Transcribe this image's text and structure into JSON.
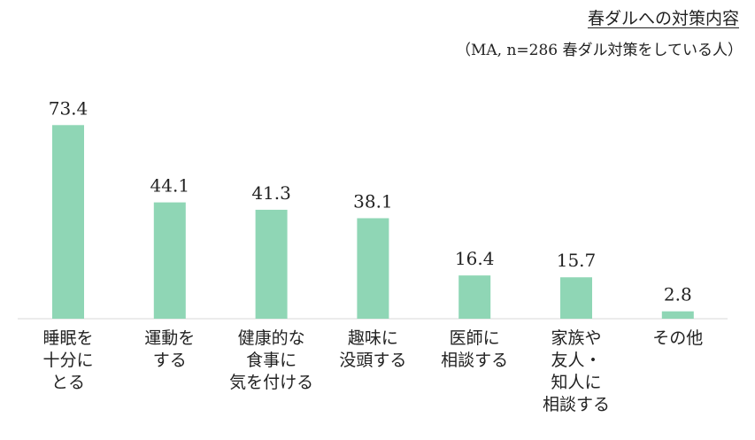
{
  "chart_data": {
    "type": "bar",
    "title": "春ダルへの対策内容",
    "subtitle": "（MA, n=286 春ダル対策をしている人）",
    "categories": [
      "睡眠を\n十分に\nとる",
      "運動を\nする",
      "健康的な\n食事に\n気を付ける",
      "趣味に\n没頭する",
      "医師に\n相談する",
      "家族や\n友人・\n知人に\n相談する",
      "その他"
    ],
    "values": [
      73.4,
      44.1,
      41.3,
      38.1,
      16.4,
      15.7,
      2.8
    ],
    "value_labels": [
      "73.4",
      "44.1",
      "41.3",
      "38.1",
      "16.4",
      "15.7",
      "2.8"
    ],
    "ylim": [
      0,
      80
    ],
    "grid": false,
    "legend": "none",
    "bar_color": "#8fd6b5",
    "axis_color": "#d9d9d9"
  }
}
